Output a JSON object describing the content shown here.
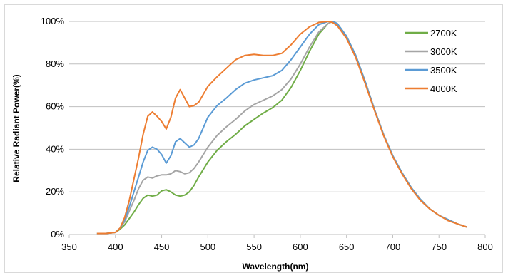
{
  "chart_data": {
    "type": "line",
    "xlabel": "Wavelength(nm)",
    "ylabel": "Relative Radiant Power(%)",
    "xlim": [
      350,
      800
    ],
    "ylim": [
      0,
      100
    ],
    "x_ticks": [
      "350",
      "400",
      "450",
      "500",
      "550",
      "600",
      "650",
      "700",
      "750",
      "800"
    ],
    "y_ticks": [
      "0%",
      "20%",
      "40%",
      "60%",
      "80%",
      "100%"
    ],
    "grid": "horizontal",
    "legend_position": "top-right",
    "series": [
      {
        "name": "2700K",
        "color": "#70ad47",
        "x": [
          380,
          390,
          400,
          405,
          410,
          415,
          420,
          425,
          430,
          435,
          440,
          445,
          450,
          455,
          460,
          465,
          470,
          475,
          480,
          485,
          490,
          500,
          510,
          520,
          530,
          540,
          550,
          560,
          570,
          580,
          590,
          600,
          610,
          620,
          630,
          635,
          640,
          650,
          660,
          670,
          680,
          690,
          700,
          710,
          720,
          730,
          740,
          750,
          760,
          770,
          780
        ],
        "y": [
          0.5,
          0.5,
          1,
          2.5,
          4.5,
          7.5,
          10.5,
          14,
          17,
          18.5,
          18,
          18.5,
          20.5,
          21,
          20,
          18.5,
          18,
          18.5,
          20,
          23,
          27,
          34,
          39.5,
          43.5,
          47,
          51,
          54,
          57,
          59.5,
          63,
          69,
          77,
          86,
          94,
          99,
          100,
          99,
          93,
          84,
          72,
          59,
          47,
          37,
          29,
          22,
          16.5,
          12,
          9,
          7,
          5,
          3.5
        ]
      },
      {
        "name": "3000K",
        "color": "#a5a5a5",
        "x": [
          380,
          390,
          400,
          405,
          410,
          415,
          420,
          425,
          430,
          435,
          440,
          445,
          450,
          455,
          460,
          465,
          470,
          475,
          480,
          485,
          490,
          500,
          510,
          520,
          530,
          540,
          550,
          560,
          570,
          580,
          590,
          600,
          610,
          620,
          630,
          635,
          640,
          650,
          660,
          670,
          680,
          690,
          700,
          710,
          720,
          730,
          740,
          750,
          760,
          770,
          780
        ],
        "y": [
          0.5,
          0.5,
          1,
          3,
          6,
          11,
          16,
          21.5,
          25.5,
          27,
          26.5,
          27.5,
          28,
          28,
          28.5,
          30,
          29.5,
          28.5,
          29,
          31,
          34,
          41,
          46.5,
          50.5,
          54,
          58,
          61,
          63,
          65,
          68,
          73,
          80,
          88,
          95,
          99,
          100,
          99,
          93,
          84,
          72,
          59,
          47,
          37,
          29,
          22,
          16.5,
          12,
          9,
          7,
          5,
          3.5
        ]
      },
      {
        "name": "3500K",
        "color": "#5b9bd5",
        "x": [
          380,
          390,
          400,
          405,
          410,
          415,
          420,
          425,
          430,
          435,
          440,
          445,
          450,
          455,
          460,
          465,
          470,
          475,
          480,
          485,
          490,
          500,
          510,
          520,
          530,
          540,
          550,
          560,
          570,
          580,
          590,
          600,
          610,
          620,
          630,
          635,
          640,
          650,
          660,
          670,
          680,
          690,
          700,
          710,
          720,
          730,
          740,
          750,
          760,
          770,
          780
        ],
        "y": [
          0.5,
          0.5,
          1,
          3,
          7,
          13,
          20,
          27,
          34,
          39.5,
          41,
          40,
          37.5,
          33.5,
          37,
          43.5,
          45,
          43,
          41,
          42,
          45,
          55,
          60.5,
          64,
          68,
          71,
          72.5,
          73.5,
          74.5,
          77,
          82,
          88,
          94,
          98.5,
          100,
          100,
          99,
          93,
          84,
          72,
          59,
          47,
          37,
          29,
          22,
          16.5,
          12,
          9,
          7,
          5,
          3.5
        ]
      },
      {
        "name": "4000K",
        "color": "#ed7d31",
        "x": [
          380,
          390,
          400,
          405,
          410,
          415,
          420,
          425,
          430,
          435,
          440,
          445,
          450,
          455,
          460,
          465,
          470,
          475,
          480,
          485,
          490,
          500,
          510,
          520,
          530,
          540,
          550,
          560,
          570,
          580,
          590,
          600,
          610,
          620,
          630,
          635,
          640,
          650,
          660,
          670,
          680,
          690,
          700,
          710,
          720,
          730,
          740,
          750,
          760,
          770,
          780
        ],
        "y": [
          0.5,
          0.5,
          1,
          3,
          8,
          16,
          26,
          36,
          47,
          55.5,
          57.5,
          55.5,
          53,
          49.5,
          55,
          64,
          68,
          64,
          60,
          60.5,
          62,
          69.5,
          74,
          78,
          82,
          84,
          84.5,
          84,
          84,
          85,
          89,
          94,
          97.5,
          99.5,
          100,
          99.5,
          98,
          92,
          83,
          71,
          58.5,
          46.5,
          36.5,
          28.5,
          21.5,
          16,
          12,
          9,
          6.5,
          5,
          3.5
        ]
      }
    ]
  }
}
